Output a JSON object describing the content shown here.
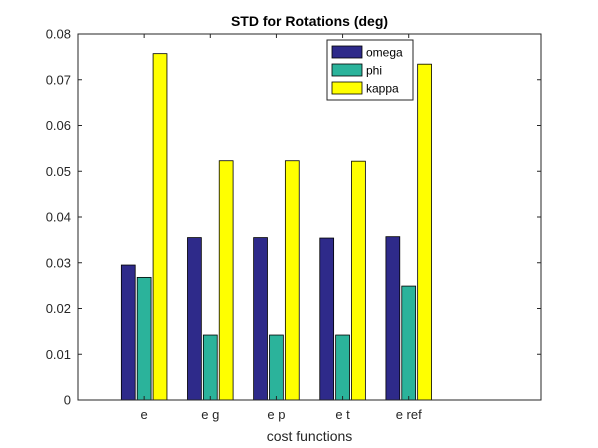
{
  "chart_data": {
    "type": "bar",
    "title": "STD for Rotations (deg)",
    "xlabel": "cost functions",
    "ylabel": "",
    "categories": [
      "e",
      "e g",
      "e p",
      "e t",
      "e ref"
    ],
    "series": [
      {
        "name": "omega",
        "color": "#2e2a8a",
        "values": [
          0.0295,
          0.0355,
          0.0355,
          0.0354,
          0.0357
        ]
      },
      {
        "name": "phi",
        "color": "#2bb39b",
        "values": [
          0.0268,
          0.0142,
          0.0142,
          0.0142,
          0.0249
        ]
      },
      {
        "name": "kappa",
        "color": "#ffff00",
        "values": [
          0.0757,
          0.0523,
          0.0523,
          0.0522,
          0.0734
        ]
      }
    ],
    "ylim": [
      0,
      0.08
    ],
    "yticks": [
      "0",
      "0.01",
      "0.02",
      "0.03",
      "0.04",
      "0.05",
      "0.06",
      "0.07",
      "0.08"
    ],
    "grid": false,
    "legend_position": "top-right",
    "box": true
  }
}
